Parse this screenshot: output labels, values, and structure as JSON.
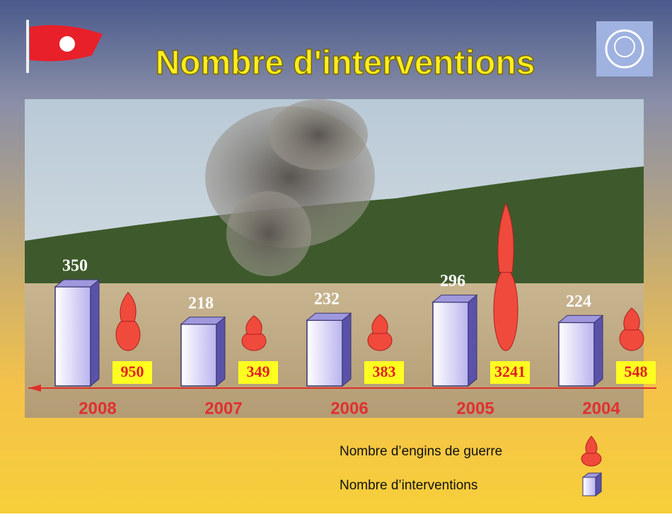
{
  "chart_data": {
    "type": "bar",
    "title": "Nombre d'interventions",
    "categories": [
      "2008",
      "2007",
      "2006",
      "2005",
      "2004"
    ],
    "series": [
      {
        "name": "Nombre d’engins de guerre",
        "color": "#f04a3c",
        "values": [
          950,
          349,
          383,
          3241,
          548
        ]
      },
      {
        "name": "Nombre d’interventions",
        "color": "#9f98dc",
        "values": [
          350,
          218,
          232,
          296,
          224
        ]
      }
    ]
  }
}
